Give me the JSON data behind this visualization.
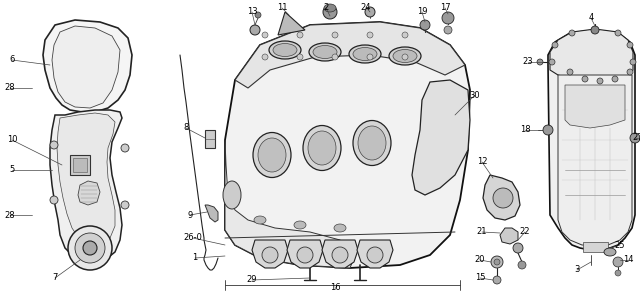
{
  "bg_color": "#ffffff",
  "fig_width": 6.4,
  "fig_height": 2.91,
  "dpi": 100,
  "line_color": "#111111",
  "text_color": "#000000",
  "label_fontsize": 6.0,
  "lw_main": 1.0,
  "lw_thin": 0.5,
  "lw_thick": 1.4
}
